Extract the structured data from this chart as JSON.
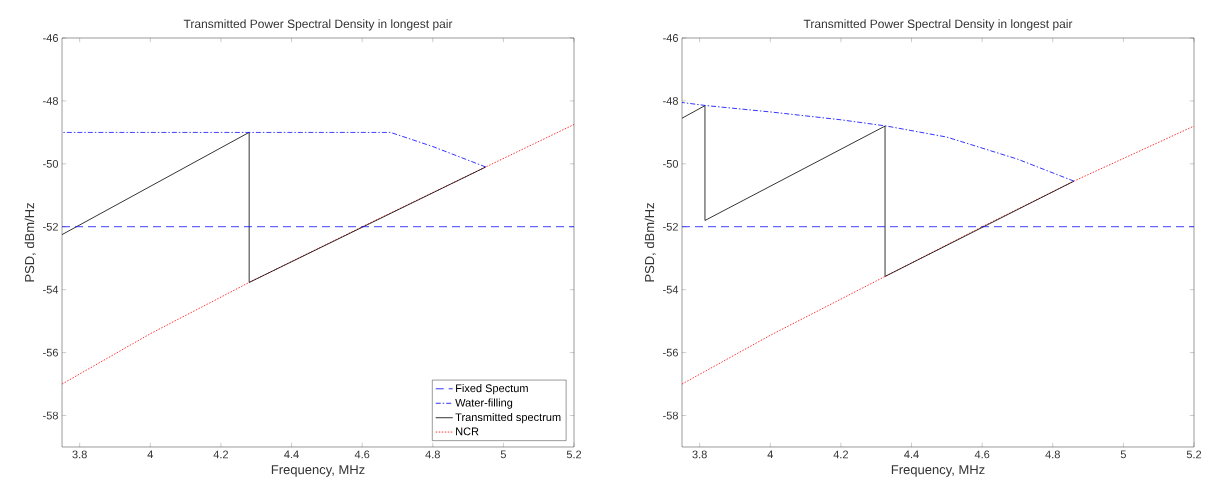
{
  "chart_data": [
    {
      "type": "line",
      "title": "Transmitted Power Spectral Density in longest pair",
      "xlabel": "Frequency, MHz",
      "ylabel": "PSD, dBm/Hz",
      "xlim": [
        3.75,
        5.2
      ],
      "ylim": [
        -59,
        -46
      ],
      "xticks": [
        3.8,
        4,
        4.2,
        4.4,
        4.6,
        4.8,
        5,
        5.2
      ],
      "yticks": [
        -58,
        -56,
        -54,
        -52,
        -50,
        -48,
        -46
      ],
      "grid": false,
      "legend": "bottom right",
      "series": [
        {
          "name": "Fixed Spectum",
          "color": "#0000ff",
          "line_style": "dashed",
          "x": [
            3.75,
            5.2
          ],
          "values": [
            -52,
            -52
          ]
        },
        {
          "name": "Water-filling",
          "color": "#0000ff",
          "line_style": "dashdot",
          "x": [
            3.75,
            4.68,
            4.8,
            4.95
          ],
          "values": [
            -49,
            -49,
            -49.45,
            -50.1
          ]
        },
        {
          "name": "Transmitted spectrum",
          "color": "#000000",
          "line_style": "solid",
          "x": [
            3.75,
            4.28,
            4.28,
            4.95
          ],
          "values": [
            -52.25,
            -49,
            -53.77,
            -50.1
          ]
        },
        {
          "name": "NCR",
          "color": "#ff0000",
          "line_style": "dotted",
          "x": [
            3.75,
            4.0,
            4.28,
            4.6,
            4.95,
            5.2
          ],
          "values": [
            -57,
            -55.4,
            -53.77,
            -52,
            -50.1,
            -48.75
          ]
        }
      ]
    },
    {
      "type": "line",
      "title": "Transmitted Power Spectral Density in longest pair",
      "xlabel": "Frequency, MHz",
      "ylabel": "PSD, dBm/Hz",
      "xlim": [
        3.75,
        5.2
      ],
      "ylim": [
        -59,
        -46
      ],
      "xticks": [
        3.8,
        4,
        4.2,
        4.4,
        4.6,
        4.8,
        5,
        5.2
      ],
      "yticks": [
        -58,
        -56,
        -54,
        -52,
        -50,
        -48,
        -46
      ],
      "grid": false,
      "legend": false,
      "series": [
        {
          "color": "#0000ff",
          "line_style": "dashed",
          "x": [
            3.75,
            5.2
          ],
          "values": [
            -52,
            -52
          ]
        },
        {
          "color": "#0000ff",
          "line_style": "dashdot",
          "x": [
            3.75,
            3.82,
            4.0,
            4.2,
            4.33,
            4.5,
            4.6,
            4.7,
            4.86
          ],
          "values": [
            -48.05,
            -48.15,
            -48.35,
            -48.6,
            -48.8,
            -49.15,
            -49.5,
            -49.85,
            -50.55
          ]
        },
        {
          "color": "#000000",
          "line_style": "solid",
          "x": [
            3.75,
            3.815,
            3.815,
            4.325,
            4.325,
            4.86
          ],
          "values": [
            -48.55,
            -48.15,
            -51.8,
            -48.8,
            -53.58,
            -50.55
          ]
        },
        {
          "color": "#ff0000",
          "line_style": "dotted",
          "x": [
            3.75,
            4.0,
            4.325,
            4.6,
            4.86,
            5.2
          ],
          "values": [
            -57,
            -55.45,
            -53.58,
            -52,
            -50.55,
            -48.8
          ]
        }
      ]
    }
  ]
}
